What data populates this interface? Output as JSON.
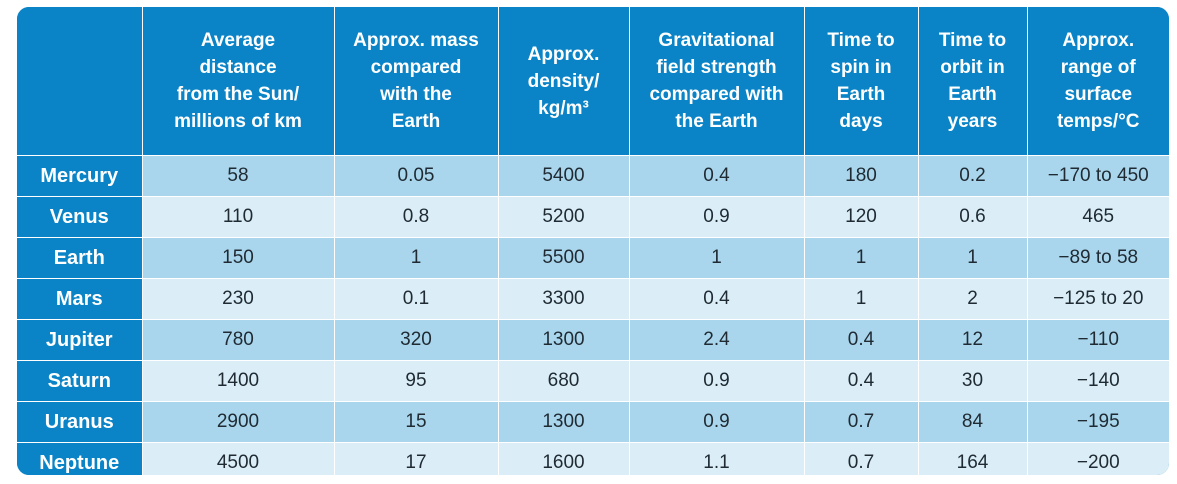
{
  "table": {
    "corner": "",
    "headers": [
      [
        "Average",
        "distance",
        "from the Sun/",
        "millions of km"
      ],
      [
        "Approx. mass",
        "compared",
        "with the",
        "Earth"
      ],
      [
        "Approx.",
        "density/",
        "kg/m³"
      ],
      [
        "Gravitational",
        "field strength",
        "compared with",
        "the Earth"
      ],
      [
        "Time to",
        "spin in",
        "Earth",
        "days"
      ],
      [
        "Time to",
        "orbit in",
        "Earth",
        "years"
      ],
      [
        "Approx.",
        "range of",
        "surface",
        "temps/°C"
      ]
    ],
    "rows": [
      {
        "planet": "Mercury",
        "values": [
          "58",
          "0.05",
          "5400",
          "0.4",
          "180",
          "0.2",
          "−170 to 450"
        ]
      },
      {
        "planet": "Venus",
        "values": [
          "110",
          "0.8",
          "5200",
          "0.9",
          "120",
          "0.6",
          "465"
        ]
      },
      {
        "planet": "Earth",
        "values": [
          "150",
          "1",
          "5500",
          "1",
          "1",
          "1",
          "−89 to 58"
        ]
      },
      {
        "planet": "Mars",
        "values": [
          "230",
          "0.1",
          "3300",
          "0.4",
          "1",
          "2",
          "−125 to 20"
        ]
      },
      {
        "planet": "Jupiter",
        "values": [
          "780",
          "320",
          "1300",
          "2.4",
          "0.4",
          "12",
          "−110"
        ]
      },
      {
        "planet": "Saturn",
        "values": [
          "1400",
          "95",
          "680",
          "0.9",
          "0.4",
          "30",
          "−140"
        ]
      },
      {
        "planet": "Uranus",
        "values": [
          "2900",
          "15",
          "1300",
          "0.9",
          "0.7",
          "84",
          "−195"
        ]
      },
      {
        "planet": "Neptune",
        "values": [
          "4500",
          "17",
          "1600",
          "1.1",
          "0.7",
          "164",
          "−200"
        ]
      }
    ]
  },
  "colors": {
    "header_blue": "#0a84c6",
    "row_dark": "#a9d6ec",
    "row_light": "#dbeef8"
  }
}
